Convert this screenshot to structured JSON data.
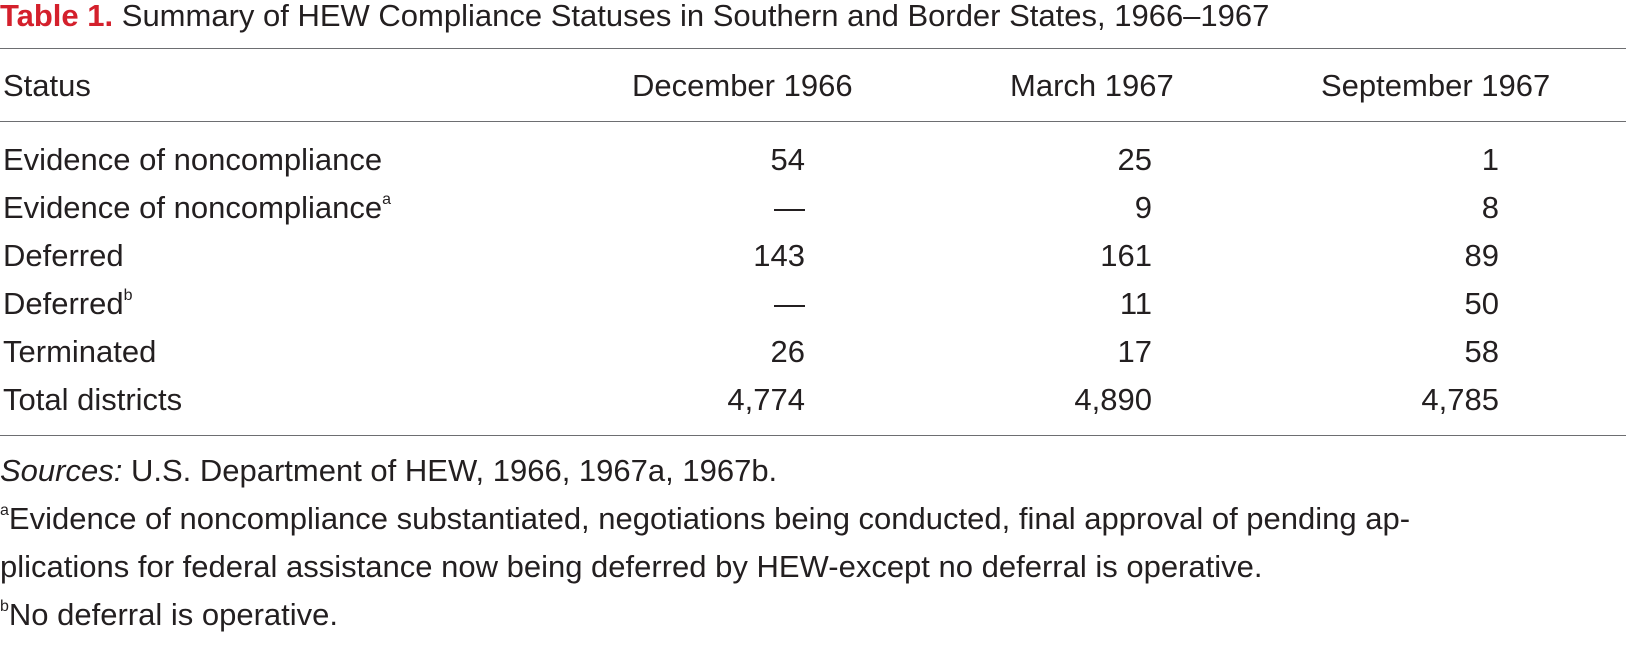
{
  "caption": {
    "label": "Table 1.",
    "title": "Summary of HEW Compliance Statuses in Southern and Border States, 1966–1967"
  },
  "columns": [
    "Status",
    "December 1966",
    "March 1967",
    "September 1967"
  ],
  "rows": [
    {
      "status": "Evidence of noncompliance",
      "sup": "",
      "dec": "54",
      "mar": "25",
      "sep": "1"
    },
    {
      "status": "Evidence of noncompliance",
      "sup": "a",
      "dec": "—",
      "mar": "9",
      "sep": "8"
    },
    {
      "status": "Deferred",
      "sup": "",
      "dec": "143",
      "mar": "161",
      "sep": "89"
    },
    {
      "status": "Deferred",
      "sup": "b",
      "dec": "—",
      "mar": "11",
      "sep": "50"
    },
    {
      "status": "Terminated",
      "sup": "",
      "dec": "26",
      "mar": "17",
      "sep": "58"
    },
    {
      "status": "Total districts",
      "sup": "",
      "dec": "4,774",
      "mar": "4,890",
      "sep": "4,785"
    }
  ],
  "notes": {
    "sources_label": "Sources:",
    "sources_text": " U.S. Department of HEW, 1966, 1967a, 1967b.",
    "a_marker": "a",
    "a_line1": "Evidence of noncompliance substantiated, negotiations being conducted, final approval of pending ap-",
    "a_line2": "plications for federal assistance now being deferred by HEW-except no deferral is operative.",
    "b_marker": "b",
    "b_text": "No deferral is operative."
  },
  "colors": {
    "caption_label": "#d4202c",
    "text": "#231f20",
    "rule": "#6d6e71"
  }
}
